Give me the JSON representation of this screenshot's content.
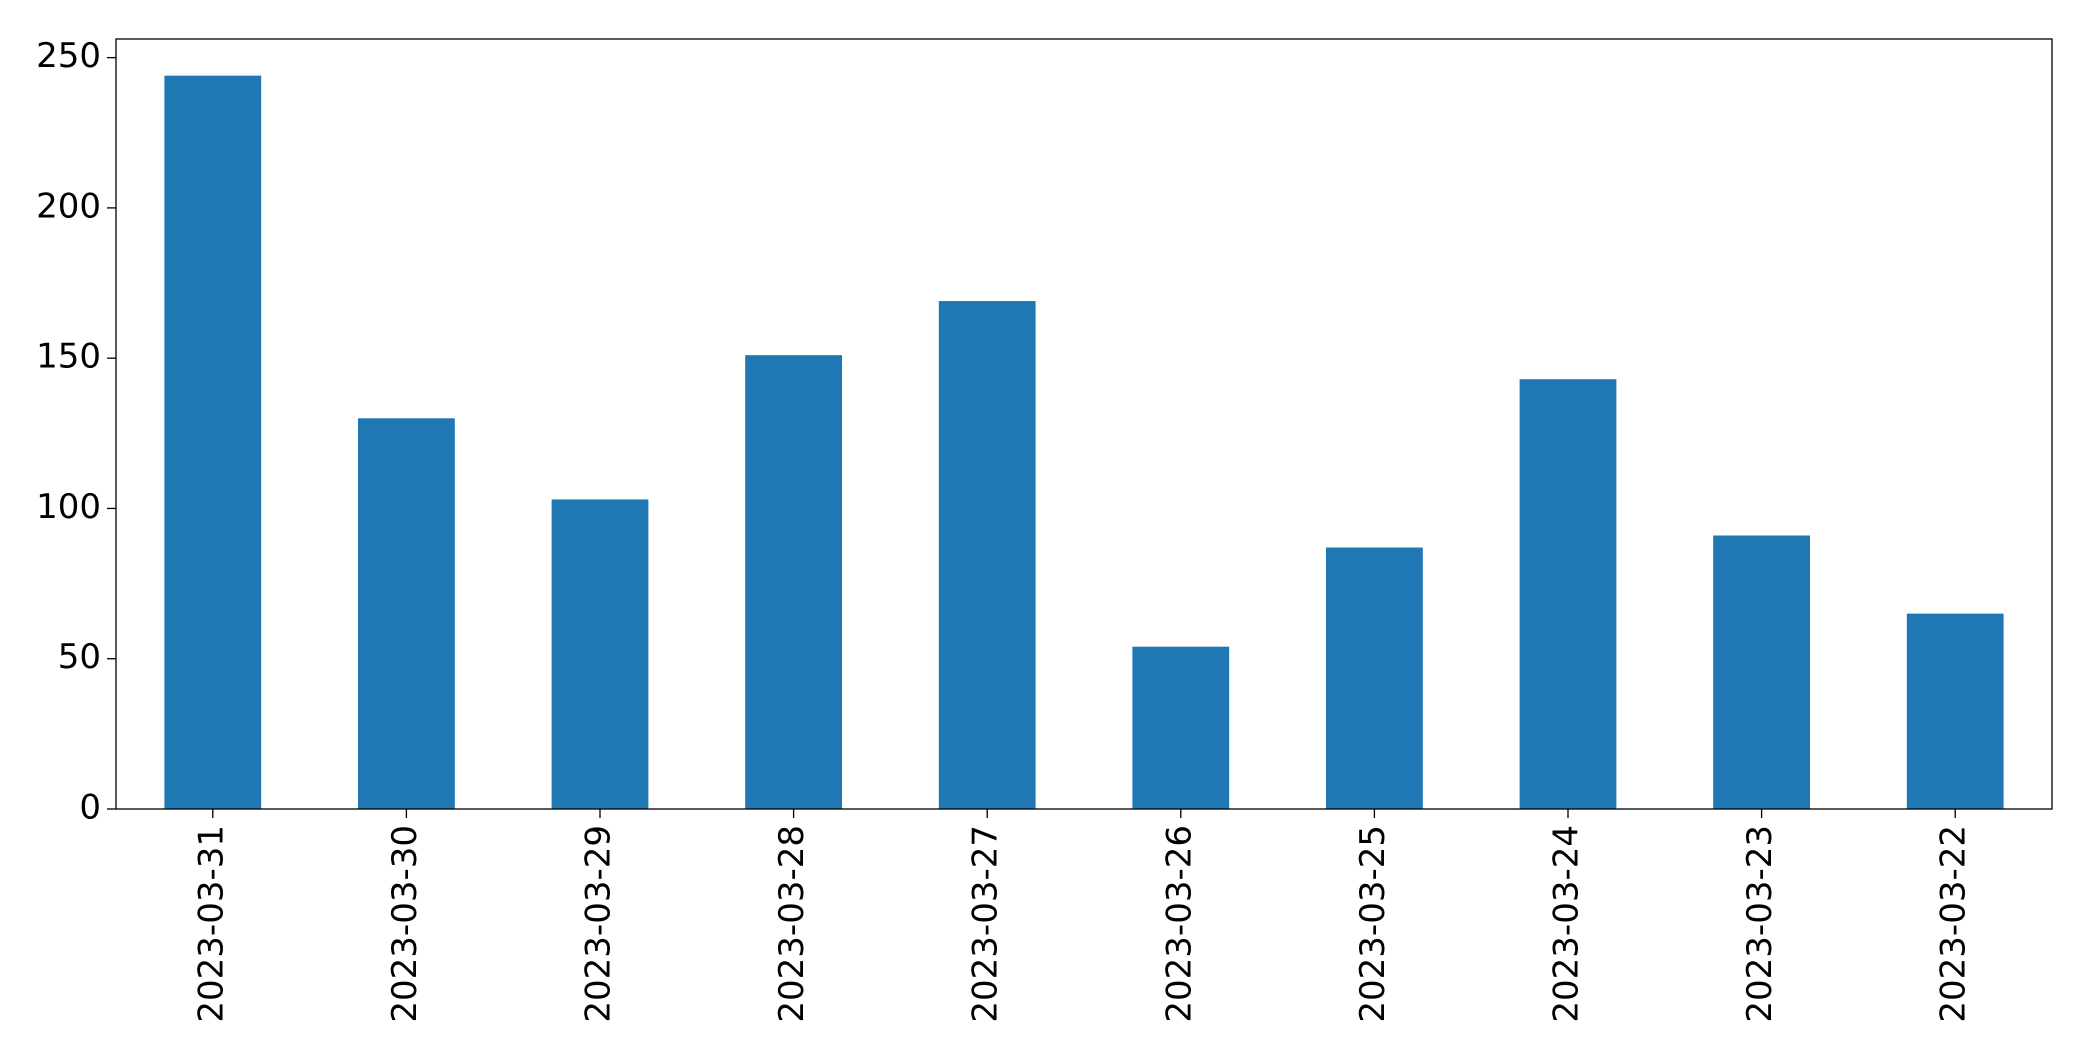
{
  "chart_data": {
    "type": "bar",
    "categories": [
      "2023-03-31",
      "2023-03-30",
      "2023-03-29",
      "2023-03-28",
      "2023-03-27",
      "2023-03-26",
      "2023-03-25",
      "2023-03-24",
      "2023-03-23",
      "2023-03-22"
    ],
    "values": [
      244,
      130,
      103,
      151,
      169,
      54,
      87,
      143,
      91,
      65
    ],
    "color": "#1f77b4",
    "ylim": [
      0,
      256.2
    ],
    "yticks": [
      0,
      50,
      100,
      150,
      200,
      250
    ],
    "grid": false
  }
}
